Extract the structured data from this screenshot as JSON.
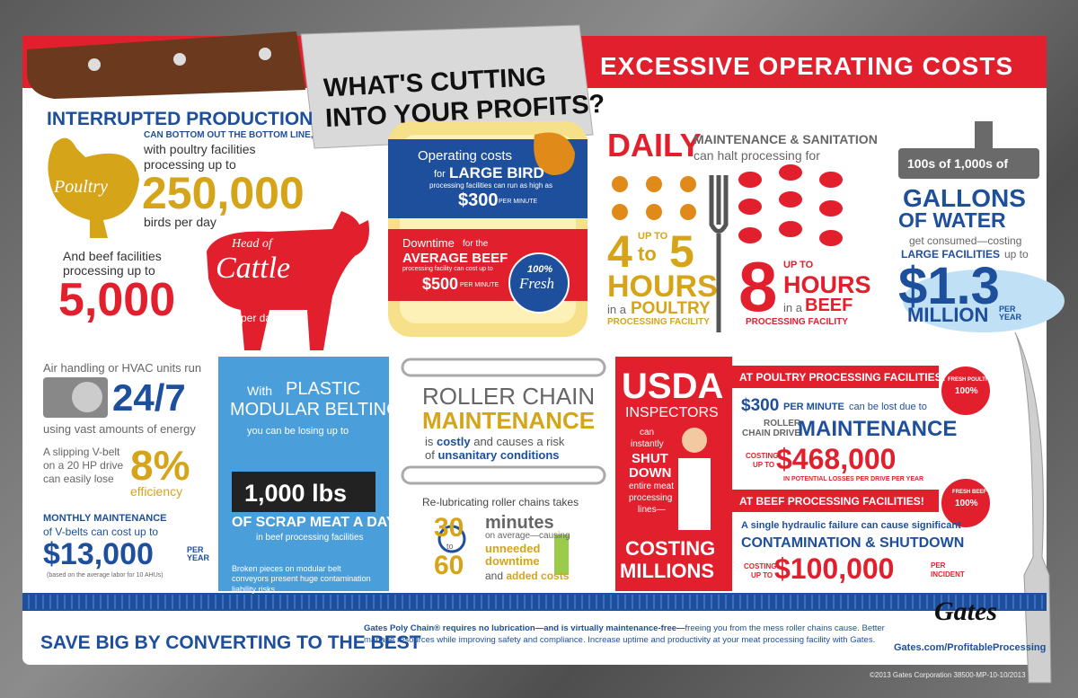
{
  "header": {
    "title_line1": "WHAT'S CUTTING",
    "title_line2": "INTO YOUR PROFITS?",
    "banner": "EXCESSIVE OPERATING COSTS"
  },
  "production": {
    "heading": "INTERRUPTED PRODUCTION",
    "line1": "CAN BOTTOM OUT THE BOTTOM LINE,",
    "line2": "with poultry facilities",
    "line3": "processing up to",
    "poultry_icon": "Poultry",
    "poultry_number": "250,000",
    "poultry_unit": "birds per day",
    "beef_text1": "And beef facilities",
    "beef_text2": "processing up to",
    "beef_number": "5,000",
    "cattle_top": "Head of",
    "cattle_icon": "Cattle",
    "beef_unit": "per day"
  },
  "package": {
    "op_title": "Operating costs",
    "op_for": "for",
    "op_bird": "LARGE BIRD",
    "op_note": "processing facilities can run as high as",
    "op_amount": "$300",
    "op_per": "PER MINUTE",
    "down_title": "Downtime",
    "down_for": "for the",
    "down_beef": "AVERAGE BEEF",
    "down_note": "processing facility can cost up to",
    "down_amount": "$500",
    "down_per": "PER MINUTE",
    "stamp_top": "100%",
    "stamp_bottom": "Fresh"
  },
  "daily": {
    "title": "DAILY",
    "line1": "MAINTENANCE & SANITATION",
    "line2": "can halt processing for",
    "p_upto": "UP TO",
    "p_from": "4",
    "p_to": "to",
    "p_max": "5",
    "p_hours": "HOURS",
    "p_ina": "in a",
    "p_type": "POULTRY",
    "p_facility": "PROCESSING FACILITY",
    "b_hours_num": "8",
    "b_upto": "UP TO",
    "b_hours": "HOURS",
    "b_ina": "in a",
    "b_type": "BEEF",
    "b_facility": "PROCESSING FACILITY"
  },
  "water": {
    "faucet": "100s of 1,000s of",
    "line1": "GALLONS",
    "line2": "OF WATER",
    "line3": "get consumed—costing",
    "line4a": "LARGE FACILITIES",
    "line4b": "up to",
    "amount": "$1.3",
    "million": "MILLION",
    "per_year": "PER YEAR"
  },
  "hvac": {
    "line1": "Air handling or HVAC units run",
    "hours": "24/7",
    "line2": "using vast amounts of energy",
    "belt1": "A slipping V-belt",
    "belt2": "on a 20 HP drive",
    "belt3": "can easily lose",
    "percent": "8%",
    "efficiency": "efficiency",
    "monthly": "MONTHLY MAINTENANCE",
    "monthly2": "of V-belts can cost up to",
    "amount": "$13,000",
    "per_year": "PER YEAR",
    "note": "(based on the average labor for 10 AHUs)"
  },
  "belting": {
    "with": "With",
    "title1": "PLASTIC",
    "title2": "MODULAR BELTING,",
    "line1": "you can be losing up to",
    "amount": "1,000 lbs",
    "line2": "OF SCRAP MEAT A DAY",
    "line3": "in beef processing facilities",
    "note": "Broken pieces on modular belt conveyors present huge contamination liability risks"
  },
  "roller": {
    "title1": "ROLLER CHAIN",
    "title2": "MAINTENANCE",
    "line1a": "is",
    "line1b": "costly",
    "line1c": "and causes a risk",
    "line2a": "of",
    "line2b": "unsanitary conditions",
    "relub": "Re-lubricating roller chains takes",
    "min_from": "30",
    "to": "to",
    "min_to": "60",
    "minutes": "minutes",
    "avg": "on average—causing",
    "unneeded": "unneeded",
    "downtime": "downtime",
    "and": "and",
    "added": "added costs"
  },
  "usda": {
    "title": "USDA",
    "inspectors": "INSPECTORS",
    "line1": "can",
    "line2": "instantly",
    "shut": "SHUT",
    "down": "DOWN",
    "line3": "entire meat",
    "line4": "processing",
    "line5": "lines—",
    "costing": "COSTING",
    "millions": "MILLIONS"
  },
  "poultry_fac": {
    "banner": "AT POULTRY PROCESSING FACILITIES!",
    "amount1": "$300",
    "per": "PER MINUTE",
    "lost": "can be lost due to",
    "drive1": "ROLLER",
    "drive2": "CHAIN DRIVE",
    "maint": "MAINTENANCE",
    "cost1": "COSTING",
    "cost2": "UP TO",
    "amount2": "$468,000",
    "losses": "IN POTENTIAL LOSSES PER DRIVE PER YEAR",
    "badge_top": "FRESH POULTRY",
    "badge_mid": "100%"
  },
  "beef_fac": {
    "banner": "AT BEEF PROCESSING FACILITIES!",
    "line1": "A single hydraulic failure can cause significant",
    "line2": "CONTAMINATION & SHUTDOWN",
    "cost1": "COSTING",
    "cost2": "UP TO",
    "amount": "$100,000",
    "per1": "PER",
    "per2": "INCIDENT",
    "badge_top": "FRESH BEEF",
    "badge_mid": "100%"
  },
  "footer": {
    "slogan": "SAVE BIG BY CONVERTING TO THE BEST",
    "body_a": "Gates Poly Chain® requires no lubrication—and is virtually maintenance-free—",
    "body_b": "freeing you from the mess roller chains cause. Better manage resources while improving safety and compliance. Increase uptime and productivity at your meat processing facility with Gates.",
    "logo": "Gates",
    "url": "Gates.com/ProfitableProcessing",
    "copyright": "©2013 Gates Corporation 38500-MP-10-10/2013"
  }
}
